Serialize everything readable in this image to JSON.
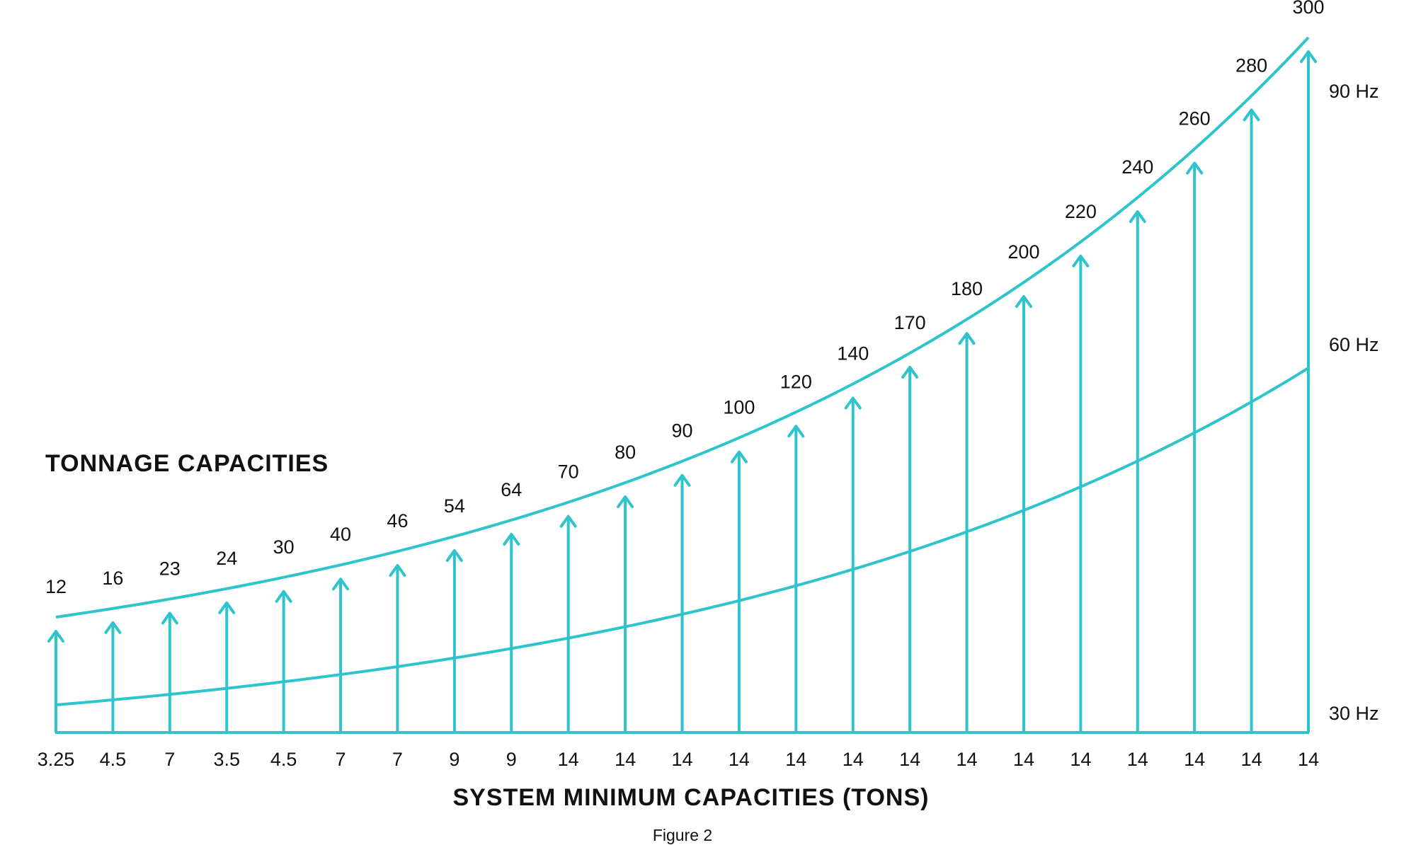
{
  "chart_data": {
    "type": "line",
    "title": "TONNAGE CAPACITIES",
    "xlabel": "SYSTEM MINIMUM CAPACITIES (TONS)",
    "caption": "Figure 2",
    "color": "#2ec4cc",
    "categories": [
      "3.25",
      "4.5",
      "7",
      "3.5",
      "4.5",
      "7",
      "7",
      "9",
      "9",
      "14",
      "14",
      "14",
      "14",
      "14",
      "14",
      "14",
      "14",
      "14",
      "14",
      "14",
      "14",
      "14",
      "14"
    ],
    "values": [
      12,
      16,
      23,
      24,
      30,
      40,
      46,
      54,
      64,
      70,
      80,
      90,
      100,
      120,
      140,
      170,
      180,
      200,
      220,
      240,
      260,
      280,
      300
    ],
    "value_labels": [
      "12",
      "16",
      "23",
      "24",
      "30",
      "40",
      "46",
      "54",
      "64",
      "70",
      "80",
      "90",
      "100",
      "120",
      "140",
      "170",
      "180",
      "200",
      "220",
      "240",
      "260",
      "280",
      "300"
    ],
    "frequency_labels": [
      "90 Hz",
      "60 Hz",
      "30 Hz"
    ],
    "grid": false,
    "legend": "none"
  }
}
